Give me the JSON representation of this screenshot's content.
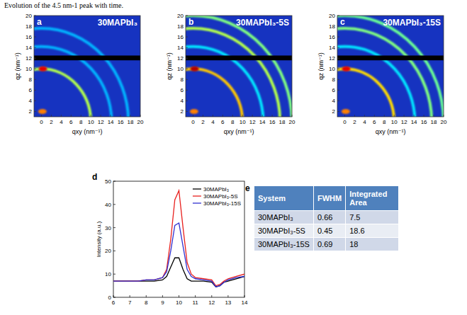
{
  "caption": "Evolution of the 4.5 nm-1 peak with time.",
  "chart_data": [
    {
      "type": "rings",
      "panel": "a",
      "title": "30MAPbI₃",
      "xlabel": "qxy (nm⁻¹)",
      "ylabel": "qz (nm⁻¹)",
      "xlim": [
        -1.5,
        20
      ],
      "ylim": [
        1,
        20
      ],
      "xticks": [
        0,
        2,
        4,
        6,
        8,
        10,
        12,
        14,
        16,
        18,
        20
      ],
      "yticks": [
        2,
        4,
        6,
        8,
        10,
        12,
        14,
        16,
        18,
        20
      ],
      "zlim": [
        0,
        1
      ],
      "detector_gap": [
        11.6,
        12.5
      ],
      "rings": [
        {
          "q": 10,
          "intensity": 0.55
        },
        {
          "q": 14.2,
          "intensity": 0.3
        },
        {
          "q": 17.6,
          "intensity": 0.3
        }
      ],
      "spots": [
        {
          "qxy": 0.3,
          "qz": 10,
          "intensity": 0.9
        },
        {
          "qxy": 0.2,
          "qz": 2,
          "intensity": 0.75
        }
      ]
    },
    {
      "type": "rings",
      "panel": "b",
      "title": "30MAPbI₃-5S",
      "xlabel": "qxy (nm⁻¹)",
      "ylabel": "qz (nm⁻¹)",
      "xlim": [
        -1.5,
        20
      ],
      "ylim": [
        1,
        20
      ],
      "xticks": [
        0,
        2,
        4,
        6,
        8,
        10,
        12,
        14,
        16,
        18,
        20
      ],
      "yticks": [
        2,
        4,
        6,
        8,
        10,
        12,
        14,
        16,
        18,
        20
      ],
      "zlim": [
        0,
        1
      ],
      "detector_gap": [
        11.6,
        12.5
      ],
      "rings": [
        {
          "q": 10,
          "intensity": 0.68
        },
        {
          "q": 14.2,
          "intensity": 0.35
        },
        {
          "q": 17.6,
          "intensity": 0.55
        },
        {
          "q": 20,
          "intensity": 0.5
        }
      ],
      "spots": [
        {
          "qxy": 0.3,
          "qz": 10,
          "intensity": 0.95
        },
        {
          "qxy": 0.2,
          "qz": 2,
          "intensity": 0.75
        }
      ]
    },
    {
      "type": "rings",
      "panel": "c",
      "title": "30MAPbI₃-15S",
      "xlabel": "qxy (nm⁻¹)",
      "ylabel": "qz (nm⁻¹)",
      "xlim": [
        -1.5,
        20
      ],
      "ylim": [
        1,
        20
      ],
      "xticks": [
        0,
        2,
        4,
        6,
        8,
        10,
        12,
        14,
        16,
        18,
        20
      ],
      "yticks": [
        2,
        4,
        6,
        8,
        10,
        12,
        14,
        16,
        18,
        20
      ],
      "zlim": [
        0,
        1
      ],
      "detector_gap": [
        11.6,
        12.5
      ],
      "rings": [
        {
          "q": 10,
          "intensity": 0.66
        },
        {
          "q": 14.2,
          "intensity": 0.35
        },
        {
          "q": 17.6,
          "intensity": 0.5
        },
        {
          "q": 20,
          "intensity": 0.48
        }
      ],
      "spots": [
        {
          "qxy": 0.3,
          "qz": 10,
          "intensity": 0.9
        },
        {
          "qxy": 0.2,
          "qz": 2,
          "intensity": 0.75
        }
      ]
    },
    {
      "type": "line",
      "panel": "d",
      "ylabel": "Intensity (a.u.)",
      "x": [
        6,
        6.5,
        7,
        7.5,
        8,
        8.5,
        9,
        9.25,
        9.5,
        9.75,
        10,
        10.25,
        10.5,
        10.75,
        11,
        11.5,
        12,
        12.25,
        12.5,
        12.75,
        13,
        13.5,
        14
      ],
      "series": [
        {
          "name": "30MAPbI₃",
          "color": "#000000",
          "values": [
            7,
            7,
            7,
            7,
            7,
            7,
            7.5,
            9,
            13,
            17,
            17,
            12,
            8,
            7,
            7,
            7,
            6.5,
            4.5,
            5,
            6.5,
            7,
            8,
            9
          ]
        },
        {
          "name": "30MAPbI₃-5S",
          "color": "#e8201e",
          "values": [
            7,
            7,
            7,
            7,
            7.5,
            7.5,
            8.5,
            12,
            25,
            42,
            46,
            30,
            15,
            10,
            8.5,
            8,
            7.5,
            5,
            5.5,
            7,
            8,
            9,
            10
          ]
        },
        {
          "name": "30MAPbI₃-15S",
          "color": "#3030d0",
          "values": [
            7,
            7,
            7,
            7,
            7.5,
            7.5,
            8.5,
            11,
            20,
            31,
            32,
            22,
            12,
            9,
            8,
            7.5,
            7,
            4.5,
            5,
            6.5,
            7.5,
            8.5,
            9
          ]
        }
      ],
      "xlim": [
        6,
        14
      ],
      "xticks": [
        6,
        7,
        8,
        9,
        10,
        11,
        12,
        13,
        14
      ],
      "ylim": [
        0,
        50
      ],
      "yticks": [
        0,
        10,
        20,
        30,
        40,
        50
      ],
      "legend": "top-right"
    }
  ],
  "table": {
    "panel": "e",
    "columns": [
      "System",
      "FWHM",
      "Integrated Area"
    ],
    "rows": [
      [
        "30MAPbI₃",
        0.66,
        7.5
      ],
      [
        "30MAPbI₃-5S",
        0.45,
        18.6
      ],
      [
        "30MAPbI₃-15S",
        0.69,
        18
      ]
    ]
  }
}
